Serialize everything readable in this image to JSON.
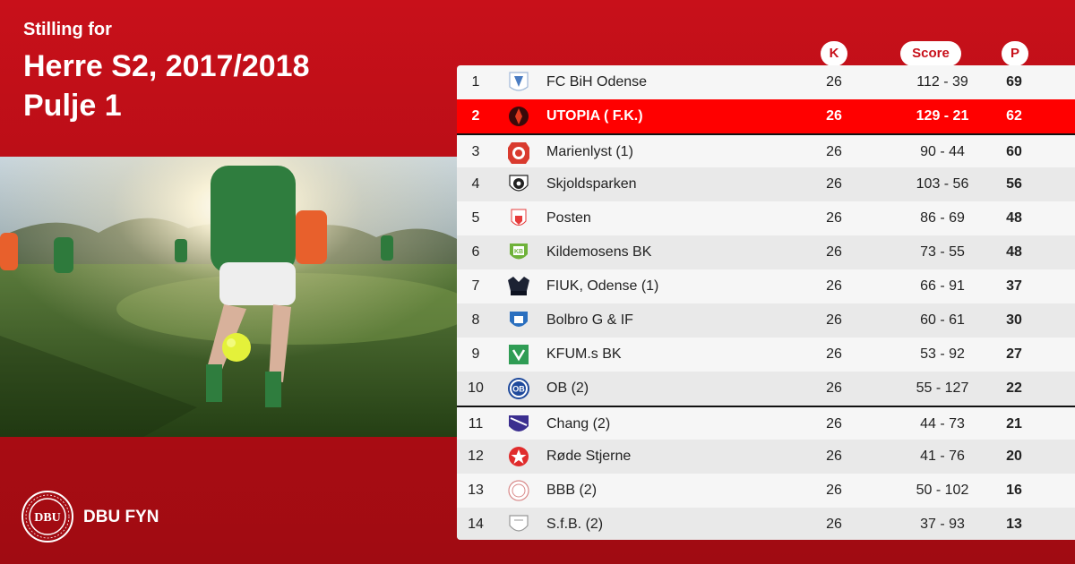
{
  "header": {
    "subtitle": "Stilling for",
    "title_line1": "Herre S2, 2017/2018",
    "title_line2": "Pulje 1"
  },
  "columns": {
    "k": "K",
    "score": "Score",
    "p": "P"
  },
  "footer": {
    "org_name": "DBU FYN",
    "logo_text": "DBU"
  },
  "colors": {
    "brand_red": "#c8101a",
    "highlight_red": "#ff0000"
  },
  "standings": [
    {
      "pos": "1",
      "team": "FC BiH Odense",
      "k": "26",
      "score": "112 - 39",
      "p": "69",
      "logo": "bih-crest-icon"
    },
    {
      "pos": "2",
      "team": "UTOPIA  ( F.K.)",
      "k": "26",
      "score": "129 - 21",
      "p": "62",
      "logo": "utopia-crest-icon",
      "highlight": true
    },
    {
      "pos": "3",
      "team": "Marienlyst (1)",
      "k": "26",
      "score": "90 - 44",
      "p": "60",
      "logo": "marienlyst-crest-icon"
    },
    {
      "pos": "4",
      "team": "Skjoldsparken",
      "k": "26",
      "score": "103 - 56",
      "p": "56",
      "logo": "skjoldsparken-crest-icon"
    },
    {
      "pos": "5",
      "team": "Posten",
      "k": "26",
      "score": "86 - 69",
      "p": "48",
      "logo": "posten-crest-icon"
    },
    {
      "pos": "6",
      "team": "Kildemosens BK",
      "k": "26",
      "score": "73 - 55",
      "p": "48",
      "logo": "kildemosen-crest-icon"
    },
    {
      "pos": "7",
      "team": "FIUK, Odense (1)",
      "k": "26",
      "score": "66 - 91",
      "p": "37",
      "logo": "fiuk-crest-icon"
    },
    {
      "pos": "8",
      "team": "Bolbro G & IF",
      "k": "26",
      "score": "60 - 61",
      "p": "30",
      "logo": "bolbro-crest-icon"
    },
    {
      "pos": "9",
      "team": "KFUM.s BK",
      "k": "26",
      "score": "53 - 92",
      "p": "27",
      "logo": "kfum-crest-icon"
    },
    {
      "pos": "10",
      "team": "OB (2)",
      "k": "26",
      "score": "55 - 127",
      "p": "22",
      "logo": "ob-crest-icon"
    },
    {
      "pos": "11",
      "team": "Chang  (2)",
      "k": "26",
      "score": "44 - 73",
      "p": "21",
      "logo": "chang-crest-icon"
    },
    {
      "pos": "12",
      "team": "Røde Stjerne",
      "k": "26",
      "score": "41 - 76",
      "p": "20",
      "logo": "rode-stjerne-crest-icon"
    },
    {
      "pos": "13",
      "team": "BBB (2)",
      "k": "26",
      "score": "50 - 102",
      "p": "16",
      "logo": "bbb-crest-icon"
    },
    {
      "pos": "14",
      "team": "S.f.B. (2)",
      "k": "26",
      "score": "37 - 93",
      "p": "13",
      "logo": "sfb-crest-icon"
    }
  ]
}
